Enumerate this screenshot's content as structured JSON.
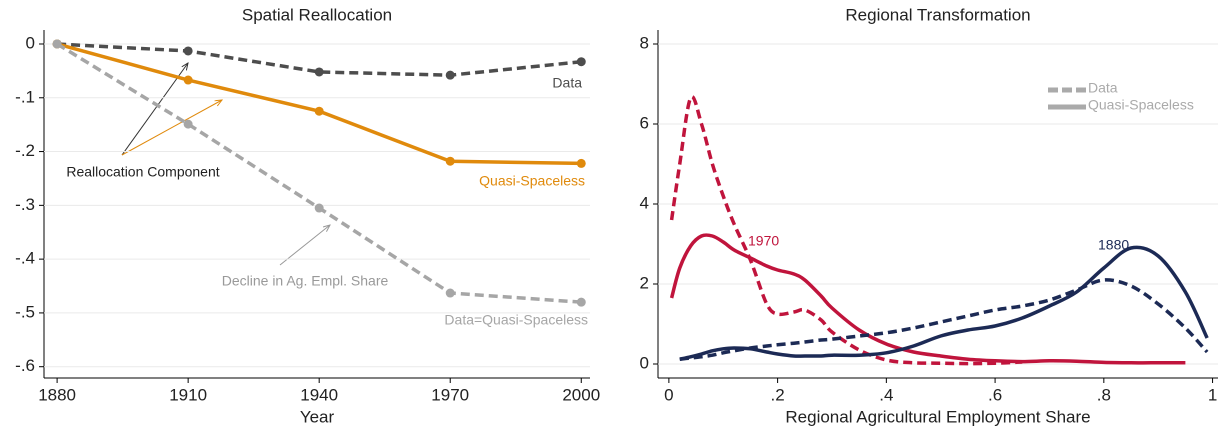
{
  "chart_data": [
    {
      "type": "line",
      "title": "Spatial Reallocation",
      "xlabel": "Year",
      "x": [
        1880,
        1910,
        1940,
        1970,
        2000
      ],
      "xlim": [
        1877,
        2002
      ],
      "xticks": [
        1880,
        1910,
        1940,
        1970,
        2000
      ],
      "ylim": [
        -0.621,
        0.026
      ],
      "yticks": [
        0,
        {
          "value": -0.1,
          "label": "-.1"
        },
        {
          "value": -0.2,
          "label": "-.2"
        },
        {
          "value": -0.3,
          "label": "-.3"
        },
        {
          "value": -0.4,
          "label": "-.4"
        },
        {
          "value": -0.5,
          "label": "-.5"
        },
        {
          "value": -0.6,
          "label": "-.6"
        }
      ],
      "grid": true,
      "series": [
        {
          "name": "Data",
          "color": "#4d4d4d",
          "style": "dashed",
          "values": [
            0,
            -0.013,
            -0.052,
            -0.058,
            -0.033
          ]
        },
        {
          "name": "Quasi-Spaceless",
          "color": "#e08a0c",
          "style": "solid",
          "values": [
            0,
            -0.067,
            -0.125,
            -0.218,
            -0.222
          ]
        },
        {
          "name": "Data=Quasi-Spaceless",
          "color": "#a6a6a6",
          "style": "dashed",
          "values": [
            0,
            -0.149,
            -0.305,
            -0.463,
            -0.48
          ]
        }
      ],
      "annotations": [
        "Reallocation Component",
        "Decline in Ag. Empl. Share"
      ]
    },
    {
      "type": "density",
      "title": "Regional Transformation",
      "xlabel": "Regional Agricultural Employment Share",
      "x": [
        0.005,
        0.02,
        0.04,
        0.06,
        0.08,
        0.1,
        0.12,
        0.15,
        0.18,
        0.2,
        0.23,
        0.25,
        0.28,
        0.3,
        0.35,
        0.4,
        0.45,
        0.5,
        0.55,
        0.6,
        0.65,
        0.7,
        0.75,
        0.8,
        0.85,
        0.9,
        0.95,
        0.99
      ],
      "xlim": [
        -0.02,
        1.01
      ],
      "xticks": [
        0,
        {
          "value": 0.2,
          "label": ".2"
        },
        {
          "value": 0.4,
          "label": ".4"
        },
        {
          "value": 0.6,
          "label": ".6"
        },
        {
          "value": 0.8,
          "label": ".8"
        },
        1
      ],
      "ylim": [
        -0.35,
        8.35
      ],
      "yticks": [
        0,
        2,
        4,
        6,
        8
      ],
      "grid": true,
      "legend": [
        {
          "name": "Data",
          "style": "dashed",
          "color": "#aaaaaa"
        },
        {
          "name": "Quasi-Spaceless",
          "style": "solid",
          "color": "#aaaaaa"
        }
      ],
      "groups": [
        {
          "name": "1970",
          "color": "#c0143c",
          "series": [
            {
              "style": "dashed",
              "values": [
                3.6,
                5.0,
                6.65,
                6.0,
                5.0,
                4.2,
                3.5,
                2.6,
                1.5,
                1.25,
                1.3,
                1.35,
                1.1,
                0.8,
                0.35,
                0.1,
                0.03,
                0.02,
                0.01,
                0.02,
                0.05,
                null,
                null,
                null,
                null,
                null,
                null,
                null
              ]
            },
            {
              "style": "solid",
              "values": [
                1.65,
                2.4,
                2.95,
                3.2,
                3.2,
                3.05,
                2.85,
                2.65,
                2.45,
                2.35,
                2.25,
                2.1,
                1.7,
                1.4,
                0.85,
                0.5,
                0.3,
                0.2,
                0.12,
                0.08,
                0.06,
                0.08,
                0.07,
                0.04,
                0.03,
                0.03,
                0.03,
                null
              ]
            }
          ]
        },
        {
          "name": "1880",
          "color": "#1c2a55",
          "series": [
            {
              "style": "dashed",
              "values": [
                null,
                0.12,
                0.15,
                0.18,
                0.22,
                0.28,
                0.33,
                0.4,
                0.45,
                0.48,
                0.52,
                0.55,
                0.6,
                0.62,
                0.7,
                0.78,
                0.9,
                1.05,
                1.2,
                1.35,
                1.45,
                1.6,
                1.85,
                2.1,
                1.95,
                1.5,
                0.9,
                0.3
              ]
            },
            {
              "style": "solid",
              "values": [
                null,
                0.12,
                0.18,
                0.25,
                0.33,
                0.38,
                0.4,
                0.38,
                0.3,
                0.25,
                0.2,
                0.2,
                0.2,
                0.22,
                0.22,
                0.28,
                0.45,
                0.7,
                0.85,
                0.95,
                1.15,
                1.45,
                1.8,
                2.4,
                2.9,
                2.7,
                1.8,
                0.65
              ]
            }
          ]
        }
      ]
    }
  ]
}
